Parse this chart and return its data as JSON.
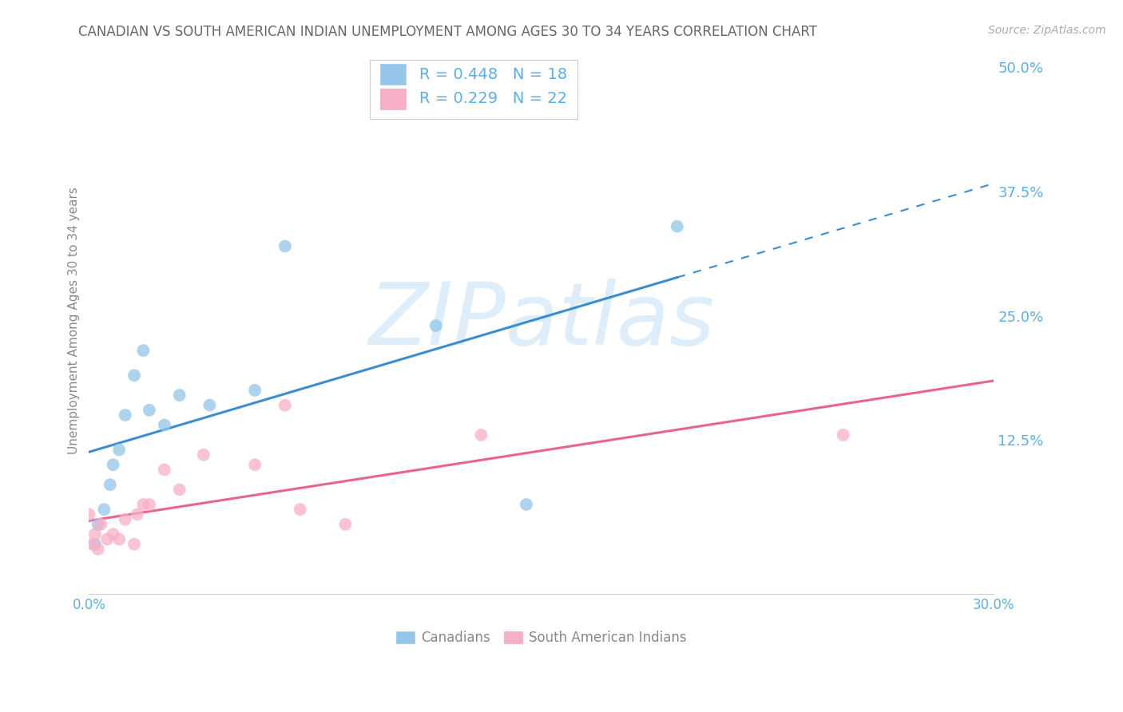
{
  "title": "CANADIAN VS SOUTH AMERICAN INDIAN UNEMPLOYMENT AMONG AGES 30 TO 34 YEARS CORRELATION CHART",
  "source": "Source: ZipAtlas.com",
  "ylabel": "Unemployment Among Ages 30 to 34 years",
  "xlim": [
    0.0,
    0.3
  ],
  "ylim": [
    -0.03,
    0.52
  ],
  "xticks": [
    0.0,
    0.05,
    0.1,
    0.15,
    0.2,
    0.25,
    0.3
  ],
  "xticklabels": [
    "0.0%",
    "",
    "",
    "",
    "",
    "",
    "30.0%"
  ],
  "yticks_right": [
    0.125,
    0.25,
    0.375,
    0.5
  ],
  "ytick_right_labels": [
    "12.5%",
    "25.0%",
    "37.5%",
    "50.0%"
  ],
  "canadian_x": [
    0.002,
    0.003,
    0.005,
    0.007,
    0.008,
    0.01,
    0.012,
    0.015,
    0.018,
    0.02,
    0.025,
    0.03,
    0.04,
    0.055,
    0.065,
    0.115,
    0.145,
    0.195
  ],
  "canadian_y": [
    0.02,
    0.04,
    0.055,
    0.08,
    0.1,
    0.115,
    0.15,
    0.19,
    0.215,
    0.155,
    0.14,
    0.17,
    0.16,
    0.175,
    0.32,
    0.24,
    0.06,
    0.34
  ],
  "sa_indian_x": [
    0.0,
    0.001,
    0.002,
    0.003,
    0.004,
    0.006,
    0.008,
    0.01,
    0.012,
    0.015,
    0.016,
    0.018,
    0.02,
    0.025,
    0.03,
    0.038,
    0.055,
    0.065,
    0.07,
    0.085,
    0.13,
    0.25
  ],
  "sa_indian_y": [
    0.05,
    0.02,
    0.03,
    0.015,
    0.04,
    0.025,
    0.03,
    0.025,
    0.045,
    0.02,
    0.05,
    0.06,
    0.06,
    0.095,
    0.075,
    0.11,
    0.1,
    0.16,
    0.055,
    0.04,
    0.13,
    0.13
  ],
  "canadian_color": "#93c6e8",
  "sa_indian_color": "#f7afc5",
  "canadian_line_color": "#3c8dcd",
  "sa_indian_line_color": "#e8638e",
  "r_canadian": 0.448,
  "n_canadian": 18,
  "r_sa": 0.229,
  "n_sa": 22,
  "watermark": "ZIPatlas",
  "watermark_color": "#ddeefa",
  "background_color": "#ffffff",
  "grid_color": "#d8d8d8",
  "title_color": "#666666",
  "right_axis_color": "#5baee8",
  "marker_size": 130
}
